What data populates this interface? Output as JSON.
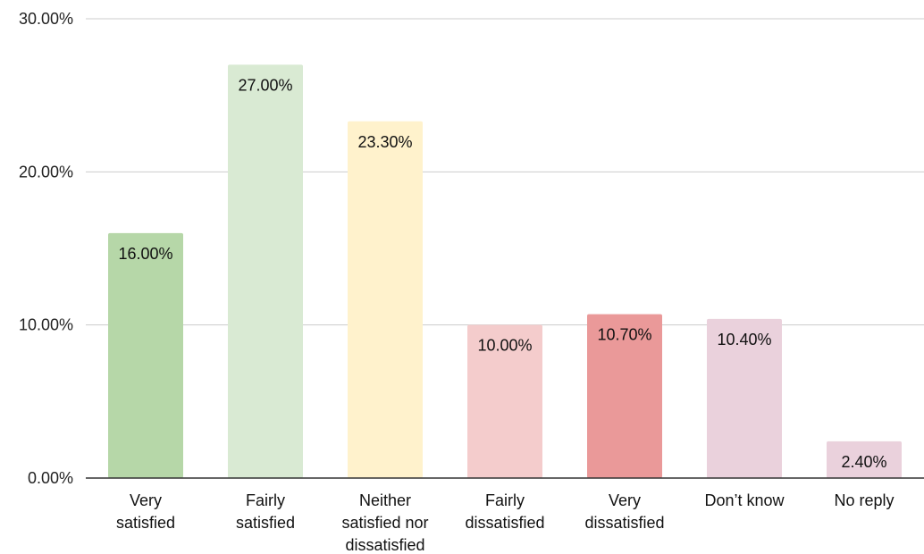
{
  "chart_data": {
    "type": "bar",
    "title": "",
    "xlabel": "",
    "ylabel": "",
    "ylim": [
      0,
      30
    ],
    "y_ticks": [
      {
        "value": 0,
        "label": "0.00%"
      },
      {
        "value": 10,
        "label": "10.00%"
      },
      {
        "value": 20,
        "label": "20.00%"
      },
      {
        "value": 30,
        "label": "30.00%"
      }
    ],
    "grid": true,
    "legend": "none",
    "categories": [
      [
        "Very",
        "satisfied"
      ],
      [
        "Fairly",
        "satisfied"
      ],
      [
        "Neither",
        "satisfied nor",
        "dissatisfied"
      ],
      [
        "Fairly",
        "dissatisfied"
      ],
      [
        "Very",
        "dissatisfied"
      ],
      [
        "Don’t know"
      ],
      [
        "No reply"
      ]
    ],
    "values": [
      16.0,
      27.0,
      23.3,
      10.0,
      10.7,
      10.4,
      2.4
    ],
    "data_labels": [
      "16.00%",
      "27.00%",
      "23.30%",
      "10.00%",
      "10.70%",
      "10.40%",
      "2.40%"
    ],
    "colors": [
      "#b6d7a8",
      "#d9ead3",
      "#fff2cc",
      "#f4cccc",
      "#ea9999",
      "#ead1dc",
      "#ead1dc"
    ]
  }
}
